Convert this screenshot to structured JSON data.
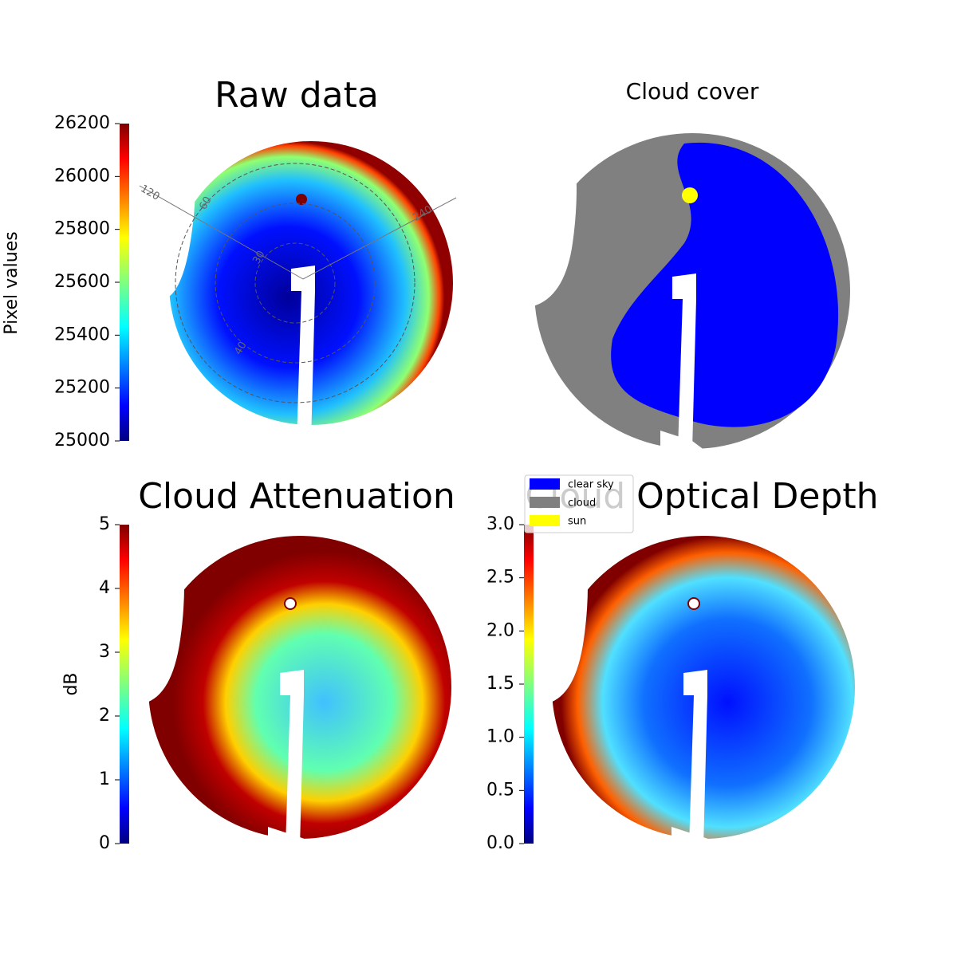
{
  "chart_data": [
    {
      "type": "skyimage",
      "title": "Raw data",
      "colorbar": {
        "label": "Pixel values",
        "lim": [
          25000,
          26200
        ],
        "ticks": [
          25000,
          25200,
          25400,
          25600,
          25800,
          26000,
          26200
        ]
      },
      "annotations": [
        "120",
        "60",
        "240",
        "30",
        "40"
      ]
    },
    {
      "type": "skyimage",
      "title": "Cloud cover",
      "legend": [
        {
          "label": "clear sky",
          "color": "#0000ff"
        },
        {
          "label": "cloud",
          "color": "#808080"
        },
        {
          "label": "sun",
          "color": "#ffff00"
        }
      ]
    },
    {
      "type": "skyimage",
      "title": "Cloud Attenuation",
      "colorbar": {
        "label": "dB",
        "lim": [
          0,
          5
        ],
        "ticks": [
          0,
          1,
          2,
          3,
          4,
          5
        ]
      }
    },
    {
      "type": "skyimage",
      "title": "Cloud Optical Depth",
      "colorbar": {
        "lim": [
          0,
          3
        ],
        "ticks": [
          {
            "value": 0,
            "label": "0.0"
          },
          0.5,
          {
            "value": 1,
            "label": "1.0"
          },
          1.5,
          {
            "value": 2,
            "label": "2.0"
          },
          2.5,
          {
            "value": 3,
            "label": "3.0"
          }
        ]
      }
    }
  ]
}
